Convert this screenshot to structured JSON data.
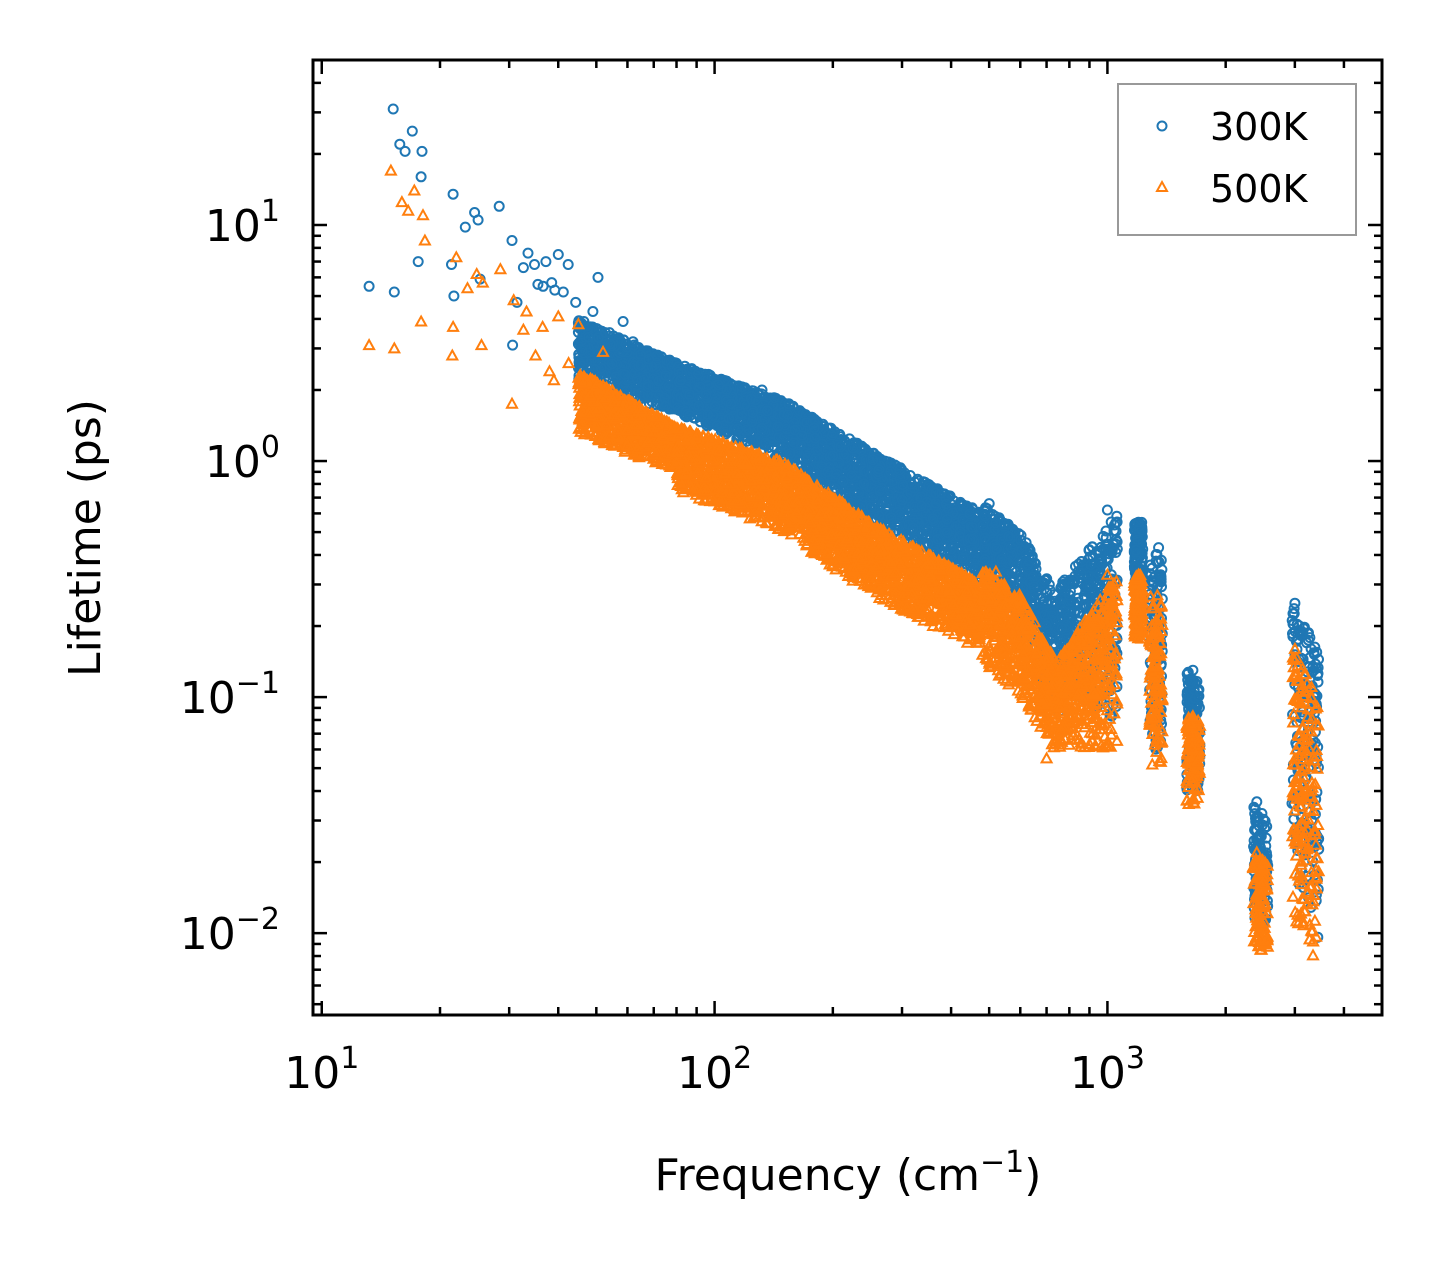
{
  "chart_data": {
    "type": "scatter",
    "title": "",
    "xlabel": "Frequency (cm",
    "xlabel_sup": "−1",
    "xlabel_suffix": ")",
    "ylabel": "Lifetime (ps)",
    "xscale": "log",
    "yscale": "log",
    "xlim": [
      9.5,
      5000
    ],
    "ylim": [
      0.0045,
      50
    ],
    "xticks": [
      {
        "value": 10,
        "base": "10",
        "exp": "1"
      },
      {
        "value": 100,
        "base": "10",
        "exp": "2"
      },
      {
        "value": 1000,
        "base": "10",
        "exp": "3"
      }
    ],
    "yticks": [
      {
        "value": 0.01,
        "base": "10",
        "exp": "−2"
      },
      {
        "value": 0.1,
        "base": "10",
        "exp": "−1"
      },
      {
        "value": 1,
        "base": "10",
        "exp": "0"
      },
      {
        "value": 10,
        "base": "10",
        "exp": "1"
      }
    ],
    "legend_position": "top-right",
    "series": [
      {
        "name": "300K",
        "color": "#1f77b4",
        "marker": "circle",
        "points": [
          [
            13.2,
            5.5
          ],
          [
            15.2,
            31
          ],
          [
            15.3,
            5.2
          ],
          [
            15.8,
            22
          ],
          [
            16.3,
            20.5
          ],
          [
            17.0,
            25
          ],
          [
            17.6,
            7.0
          ],
          [
            17.9,
            16
          ],
          [
            18.0,
            20.5
          ],
          [
            21.4,
            6.8
          ],
          [
            21.6,
            13.5
          ],
          [
            21.7,
            5.0
          ],
          [
            23.2,
            9.8
          ],
          [
            24.5,
            11.3
          ],
          [
            25.0,
            10.5
          ],
          [
            25.3,
            5.9
          ],
          [
            28.3,
            12.0
          ],
          [
            30.5,
            8.6
          ],
          [
            30.6,
            3.1
          ],
          [
            31.4,
            4.7
          ],
          [
            32.6,
            6.6
          ],
          [
            33.5,
            7.6
          ],
          [
            34.8,
            6.8
          ],
          [
            35.5,
            5.6
          ],
          [
            36.6,
            5.5
          ],
          [
            37.2,
            7.0
          ],
          [
            38.5,
            5.7
          ],
          [
            39.2,
            5.3
          ],
          [
            40.0,
            7.5
          ],
          [
            41.2,
            5.2
          ],
          [
            42.4,
            6.8
          ],
          [
            44.3,
            4.7
          ],
          [
            46.5,
            3.9
          ],
          [
            49.0,
            4.3
          ],
          [
            50.5,
            6.0
          ],
          [
            54.0,
            3.5
          ],
          [
            58.5,
            3.9
          ],
          [
            62.0,
            3.2
          ],
          [
            68.0,
            2.7
          ],
          [
            75.0,
            2.3
          ],
          [
            82.0,
            2.2
          ],
          [
            95.0,
            1.9
          ],
          [
            110.0,
            1.75
          ],
          [
            125.0,
            1.6
          ],
          [
            132.0,
            2.0
          ],
          [
            145.0,
            1.4
          ],
          [
            160.0,
            1.35
          ],
          [
            180.0,
            1.25
          ],
          [
            200.0,
            1.05
          ],
          [
            215.0,
            1.2
          ],
          [
            240.0,
            0.8
          ],
          [
            280.0,
            0.75
          ],
          [
            320.0,
            0.52
          ],
          [
            360.0,
            0.57
          ],
          [
            420.0,
            0.48
          ],
          [
            500.0,
            0.66
          ],
          [
            560.0,
            0.48
          ],
          [
            620.0,
            0.4
          ],
          [
            700.0,
            0.2
          ],
          [
            800.0,
            0.27
          ],
          [
            900.0,
            0.42
          ],
          [
            1000.0,
            0.62
          ],
          [
            1200.0,
            0.55
          ],
          [
            1350.0,
            0.43
          ],
          [
            1650.0,
            0.13
          ],
          [
            2400.0,
            0.036
          ],
          [
            3000.0,
            0.25
          ],
          [
            3300.0,
            0.16
          ]
        ],
        "bands": [
          {
            "x": [
              45,
              80
            ],
            "lo": [
              2.2,
              1.6
            ],
            "hi": [
              4.0,
              2.6
            ]
          },
          {
            "x": [
              80,
              150
            ],
            "lo": [
              1.6,
              1.0
            ],
            "hi": [
              2.6,
              1.8
            ]
          },
          {
            "x": [
              150,
              250
            ],
            "lo": [
              1.0,
              0.55
            ],
            "hi": [
              1.8,
              1.1
            ]
          },
          {
            "x": [
              250,
              480
            ],
            "lo": [
              0.55,
              0.3
            ],
            "hi": [
              1.1,
              0.6
            ]
          },
          {
            "x": [
              480,
              600
            ],
            "lo": [
              0.3,
              0.22
            ],
            "hi": [
              0.65,
              0.5
            ]
          },
          {
            "x": [
              600,
              760
            ],
            "lo": [
              0.18,
              0.07
            ],
            "hi": [
              0.5,
              0.25
            ]
          },
          {
            "x": [
              760,
              1060
            ],
            "lo": [
              0.1,
              0.08
            ],
            "hi": [
              0.3,
              0.6
            ]
          },
          {
            "x": [
              1170,
              1230
            ],
            "lo": [
              0.27,
              0.25
            ],
            "hi": [
              0.55,
              0.55
            ]
          },
          {
            "x": [
              1280,
              1380
            ],
            "lo": [
              0.06,
              0.06
            ],
            "hi": [
              0.42,
              0.4
            ]
          },
          {
            "x": [
              1590,
              1720
            ],
            "lo": [
              0.04,
              0.04
            ],
            "hi": [
              0.13,
              0.12
            ]
          },
          {
            "x": [
              2350,
              2560
            ],
            "lo": [
              0.012,
              0.009
            ],
            "hi": [
              0.036,
              0.03
            ]
          },
          {
            "x": [
              2950,
              3450
            ],
            "lo": [
              0.02,
              0.0085
            ],
            "hi": [
              0.25,
              0.16
            ]
          }
        ]
      },
      {
        "name": "500K",
        "color": "#ff7f0e",
        "marker": "triangle",
        "points": [
          [
            13.2,
            3.1
          ],
          [
            15.0,
            17.0
          ],
          [
            15.3,
            3.0
          ],
          [
            16.0,
            12.5
          ],
          [
            16.6,
            11.5
          ],
          [
            17.2,
            14
          ],
          [
            17.9,
            3.9
          ],
          [
            18.1,
            11.0
          ],
          [
            18.3,
            8.6
          ],
          [
            21.5,
            2.8
          ],
          [
            21.6,
            3.7
          ],
          [
            22.0,
            7.3
          ],
          [
            23.5,
            5.4
          ],
          [
            24.8,
            6.2
          ],
          [
            25.5,
            3.1
          ],
          [
            25.7,
            5.7
          ],
          [
            28.5,
            6.5
          ],
          [
            30.5,
            1.75
          ],
          [
            30.8,
            4.8
          ],
          [
            32.6,
            3.6
          ],
          [
            33.2,
            4.3
          ],
          [
            35.0,
            2.8
          ],
          [
            36.5,
            3.7
          ],
          [
            38.0,
            2.4
          ],
          [
            39.0,
            2.2
          ],
          [
            40.0,
            4.1
          ],
          [
            42.5,
            2.6
          ],
          [
            45.0,
            3.8
          ],
          [
            48.0,
            1.6
          ],
          [
            52.0,
            2.9
          ],
          [
            60.0,
            1.35
          ],
          [
            70.0,
            1.1
          ],
          [
            80.0,
            0.98
          ],
          [
            95.0,
            0.85
          ],
          [
            110.0,
            0.8
          ],
          [
            130.0,
            1.05
          ],
          [
            150.0,
            0.7
          ],
          [
            175.0,
            0.55
          ],
          [
            210.0,
            0.4
          ],
          [
            240.0,
            0.3
          ],
          [
            300.0,
            0.24
          ],
          [
            360.0,
            0.2
          ],
          [
            440.0,
            0.17
          ],
          [
            520.0,
            0.34
          ],
          [
            600.0,
            0.14
          ],
          [
            700.0,
            0.055
          ],
          [
            800.0,
            0.11
          ],
          [
            900.0,
            0.21
          ],
          [
            1000.0,
            0.33
          ],
          [
            1200.0,
            0.33
          ],
          [
            1340.0,
            0.27
          ],
          [
            1650.0,
            0.083
          ],
          [
            2400.0,
            0.022
          ],
          [
            3000.0,
            0.16
          ],
          [
            3300.0,
            0.1
          ]
        ],
        "bands": [
          {
            "x": [
              45,
              80
            ],
            "lo": [
              1.3,
              0.9
            ],
            "hi": [
              2.4,
              1.4
            ]
          },
          {
            "x": [
              80,
              150
            ],
            "lo": [
              0.75,
              0.5
            ],
            "hi": [
              1.4,
              1.0
            ]
          },
          {
            "x": [
              150,
              250
            ],
            "lo": [
              0.5,
              0.27
            ],
            "hi": [
              1.0,
              0.55
            ]
          },
          {
            "x": [
              250,
              480
            ],
            "lo": [
              0.27,
              0.16
            ],
            "hi": [
              0.55,
              0.3
            ]
          },
          {
            "x": [
              480,
              600
            ],
            "lo": [
              0.14,
              0.1
            ],
            "hi": [
              0.35,
              0.27
            ]
          },
          {
            "x": [
              600,
              760
            ],
            "lo": [
              0.1,
              0.055
            ],
            "hi": [
              0.27,
              0.13
            ]
          },
          {
            "x": [
              760,
              1060
            ],
            "lo": [
              0.06,
              0.06
            ],
            "hi": [
              0.15,
              0.33
            ]
          },
          {
            "x": [
              1170,
              1230
            ],
            "lo": [
              0.18,
              0.17
            ],
            "hi": [
              0.33,
              0.33
            ]
          },
          {
            "x": [
              1280,
              1380
            ],
            "lo": [
              0.05,
              0.05
            ],
            "hi": [
              0.27,
              0.25
            ]
          },
          {
            "x": [
              1590,
              1720
            ],
            "lo": [
              0.035,
              0.035
            ],
            "hi": [
              0.083,
              0.08
            ]
          },
          {
            "x": [
              2350,
              2560
            ],
            "lo": [
              0.009,
              0.007
            ],
            "hi": [
              0.022,
              0.02
            ]
          },
          {
            "x": [
              2950,
              3450
            ],
            "lo": [
              0.012,
              0.007
            ],
            "hi": [
              0.16,
              0.1
            ]
          }
        ]
      }
    ]
  }
}
